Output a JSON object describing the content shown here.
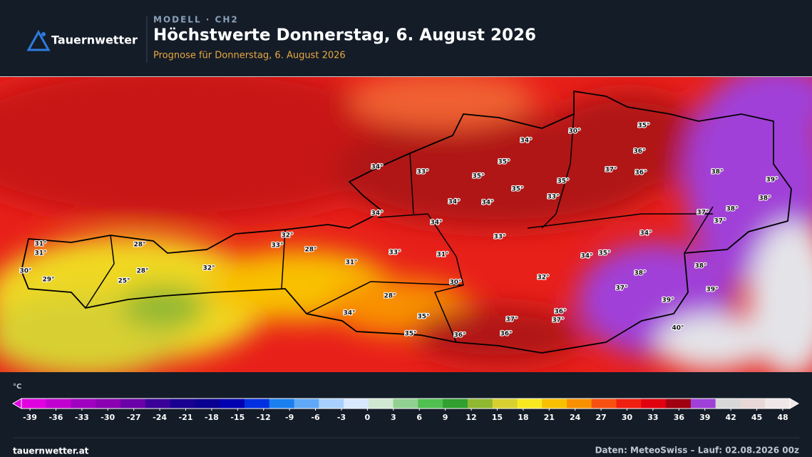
{
  "header": {
    "logo": "Tauernwetter",
    "kicker": "MODELL · CH2",
    "title": "Höchstwerte Donnerstag, 6. August 2026",
    "subtitle": "Prognose für Donnerstag, 6. August 2026"
  },
  "map": {
    "labels": [
      "31°",
      "31°",
      "30°",
      "29°",
      "28°",
      "28°",
      "25°",
      "32°",
      "32°",
      "33°",
      "28°",
      "31°",
      "33°",
      "31°",
      "34°",
      "33°",
      "34°",
      "35°",
      "35°",
      "35°",
      "35°",
      "33°",
      "34°",
      "34°",
      "34°",
      "34°",
      "33°",
      "30°",
      "35°",
      "36°",
      "37°",
      "36°",
      "38°",
      "39°",
      "38°",
      "37°",
      "38°",
      "37°",
      "34°",
      "34°",
      "35°",
      "32°",
      "38°",
      "38°",
      "37°",
      "39°",
      "39°",
      "30°",
      "28°",
      "34°",
      "35°",
      "37°",
      "36°",
      "37°",
      "35°",
      "36°",
      "36°",
      "40°"
    ]
  },
  "legend": {
    "unit": "°C",
    "ticks": [
      -39,
      -36,
      -33,
      -30,
      -27,
      -24,
      -21,
      -18,
      -15,
      -12,
      -9,
      -6,
      -3,
      0,
      3,
      6,
      9,
      12,
      15,
      18,
      21,
      24,
      27,
      30,
      33,
      36,
      39,
      42,
      45,
      48
    ],
    "colors": [
      "#e000e0",
      "#c000d0",
      "#a000c0",
      "#8a00b0",
      "#6a00a8",
      "#3a0098",
      "#1a0090",
      "#0a0090",
      "#0000b0",
      "#0030e0",
      "#1a80f0",
      "#60a8f8",
      "#a8d0ff",
      "#d8e8ff",
      "#d0e8d0",
      "#90d090",
      "#50c050",
      "#30a030",
      "#90b830",
      "#d8d030",
      "#f8e820",
      "#f8c000",
      "#f89000",
      "#f85010",
      "#f02010",
      "#e00010",
      "#a00010",
      "#a040d8",
      "#d8d8d8",
      "#e8d8d8",
      "#f0e8e8"
    ]
  },
  "footer": {
    "site": "tauernwetter.at",
    "source": "Daten: MeteoSwiss – Lauf: 02.08.2026 00z"
  }
}
